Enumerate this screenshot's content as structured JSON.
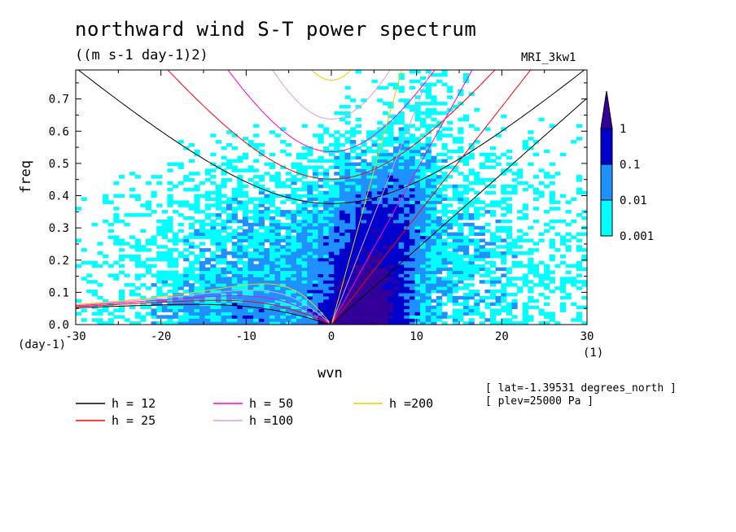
{
  "title": "northward wind S-T power spectrum",
  "units": "((m s-1 day-1)2)",
  "model": "MRI_3kw1",
  "meta": [
    "[ lat=-1.39531 degrees_north ]",
    "[ plev=25000 Pa ]"
  ],
  "chart_data": {
    "type": "heatmap",
    "title": "northward wind S-T power spectrum",
    "xlabel": "wvn",
    "ylabel": "freq",
    "x_unit": "(1)",
    "y_unit": "(day-1)",
    "xlim": [
      -30,
      30
    ],
    "ylim": [
      0,
      0.79
    ],
    "x_ticks": [
      "-30",
      "-20",
      "-10",
      "0",
      "10",
      "20",
      "30"
    ],
    "y_ticks": [
      "0.0",
      "0.1",
      "0.2",
      "0.3",
      "0.4",
      "0.5",
      "0.6",
      "0.7"
    ],
    "colorbar": {
      "levels": [
        "0.001",
        "0.01",
        "0.1",
        "1"
      ],
      "colors": [
        "#00ffff",
        "#1e90ff",
        "#0000cc",
        "#330099"
      ]
    },
    "dispersion_curves": [
      {
        "name": "h = 12",
        "color": "#000000"
      },
      {
        "name": "h = 25",
        "color": "#ff0000"
      },
      {
        "name": "h = 50",
        "color": "#ff00cc"
      },
      {
        "name": "h =100",
        "color": "#d8a0e0"
      },
      {
        "name": "h =200",
        "color": "#e8d000"
      }
    ]
  }
}
